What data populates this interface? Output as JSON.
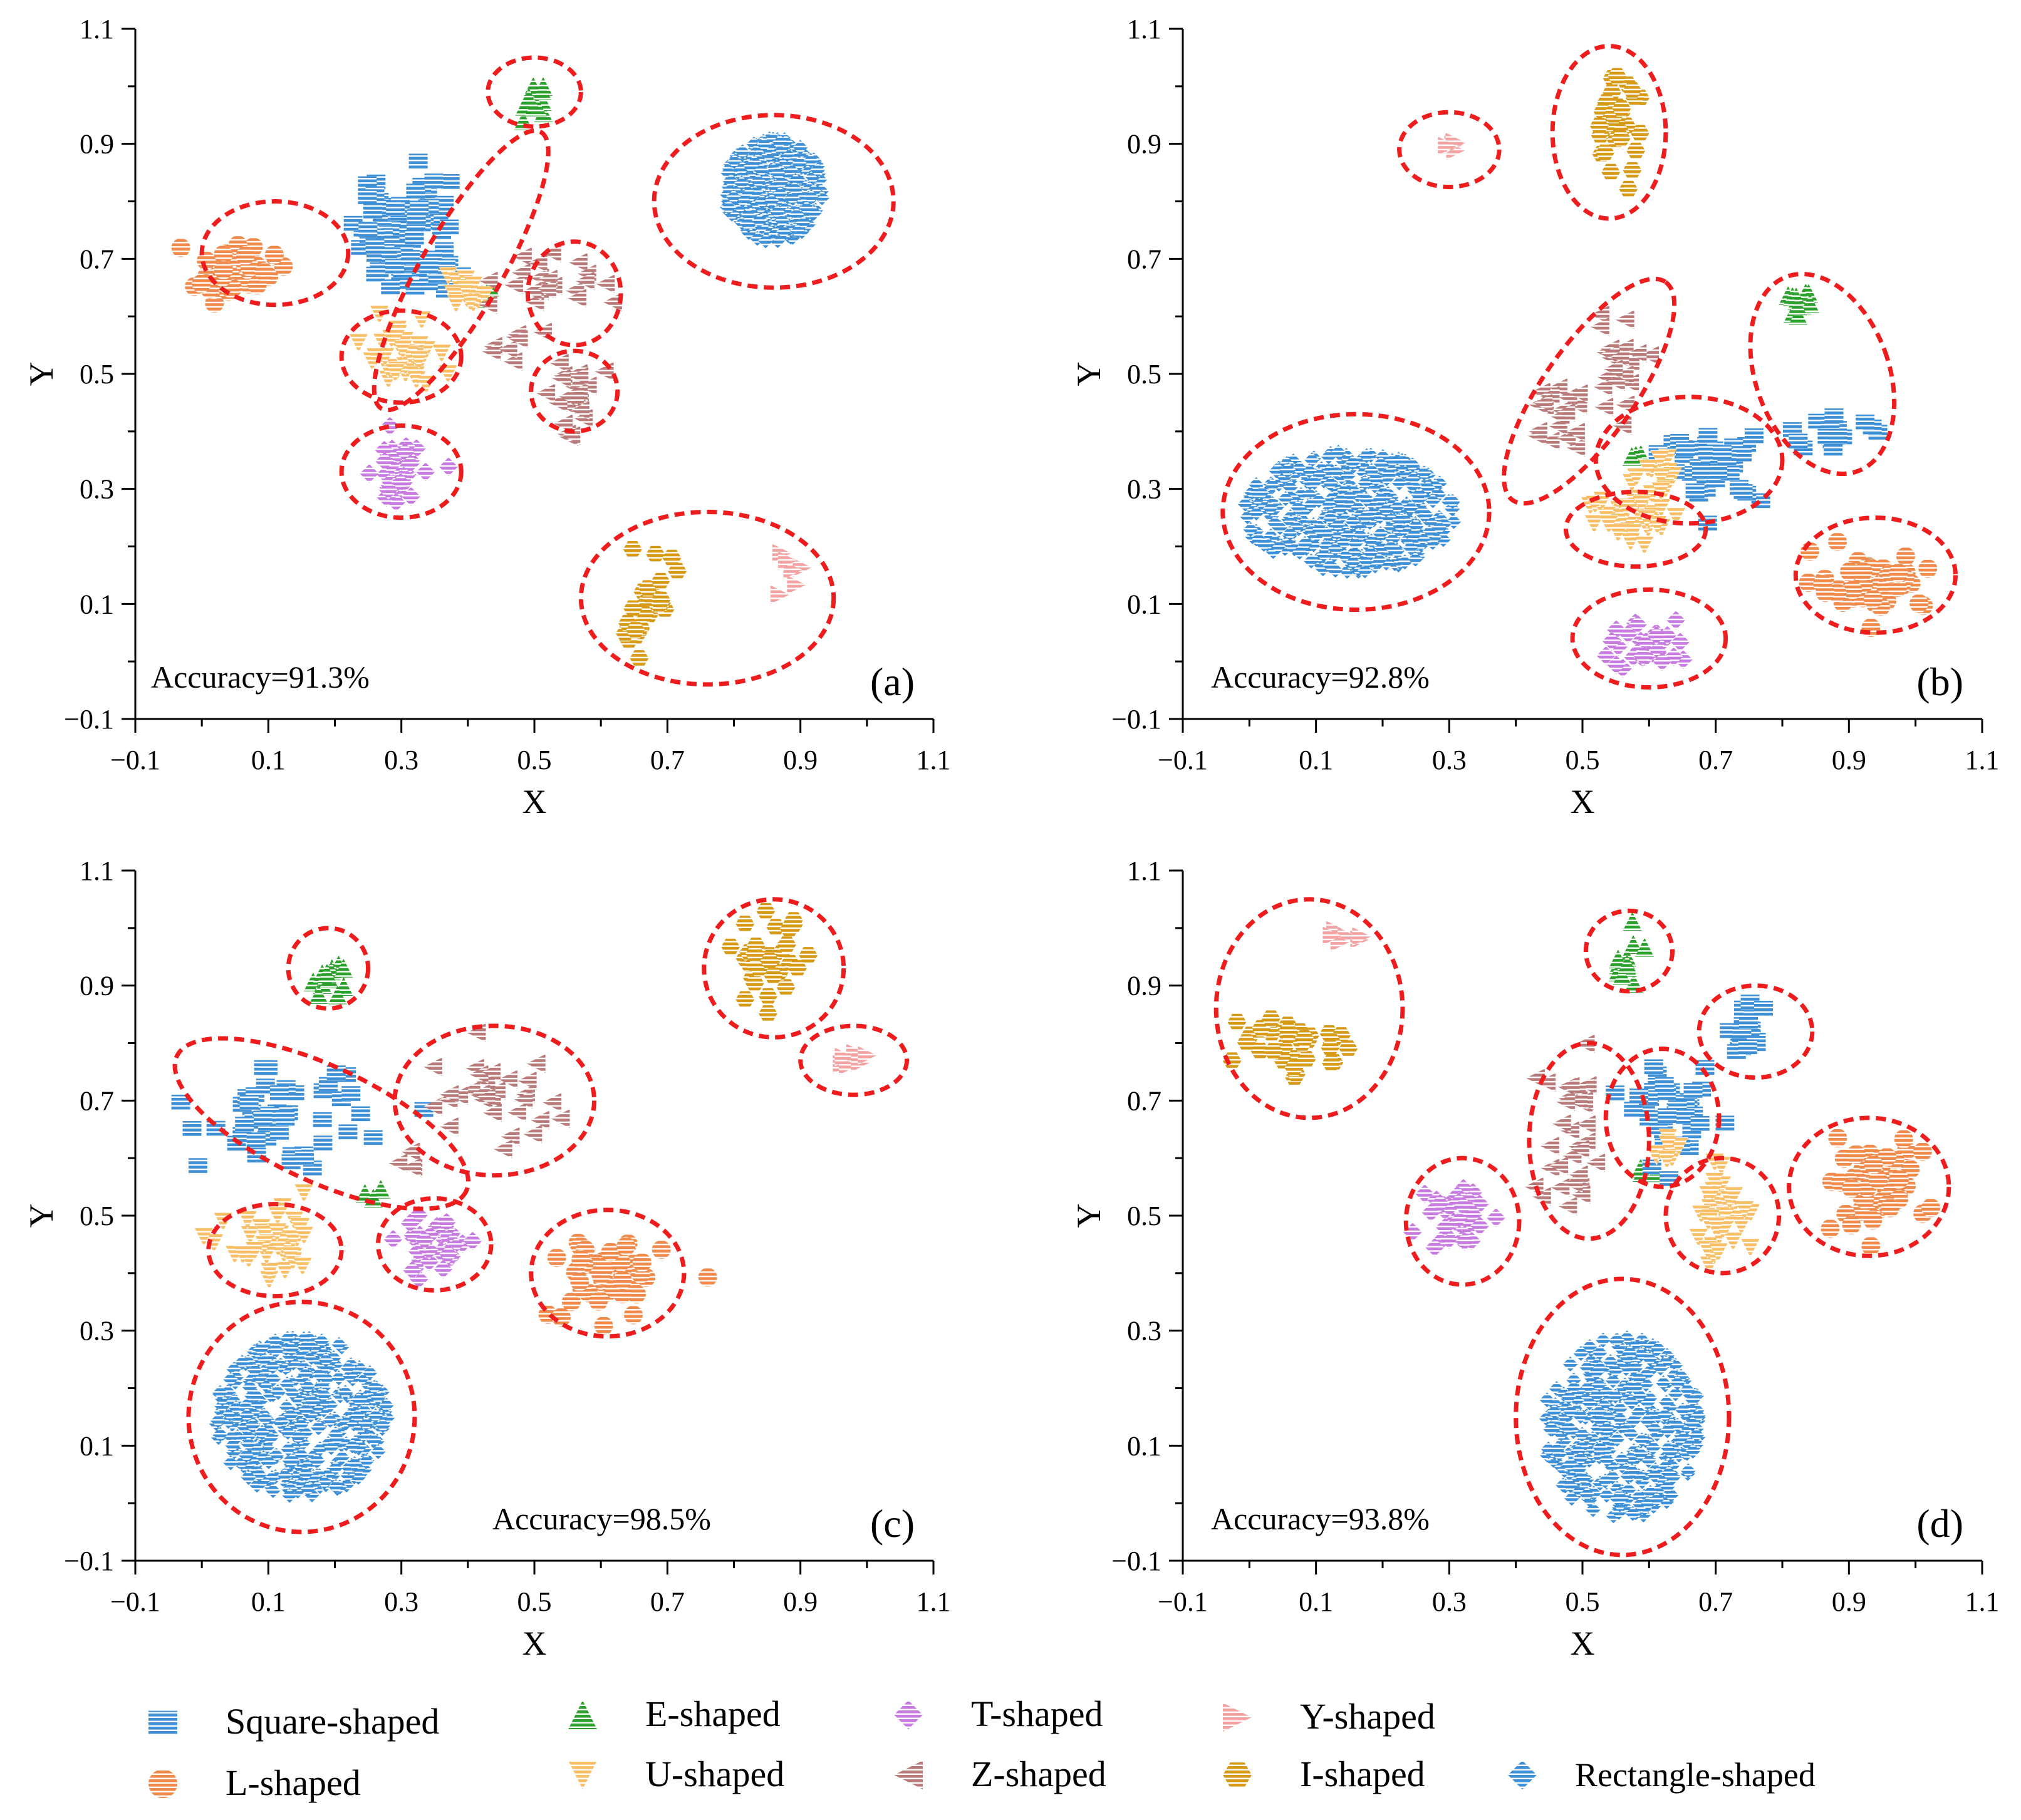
{
  "legend": [
    {
      "key": "square",
      "label": "Square-shaped",
      "color": "#3d8fd6",
      "marker": "square-icon"
    },
    {
      "key": "L",
      "label": "L-shaped",
      "color": "#f08a4b",
      "marker": "circle-icon"
    },
    {
      "key": "E",
      "label": "E-shaped",
      "color": "#2ca02c",
      "marker": "triangle-up-icon"
    },
    {
      "key": "U",
      "label": "U-shaped",
      "color": "#f9bf66",
      "marker": "triangle-down-icon"
    },
    {
      "key": "T",
      "label": "T-shaped",
      "color": "#c77be0",
      "marker": "diamond-icon"
    },
    {
      "key": "Z",
      "label": "Z-shaped",
      "color": "#b97a7a",
      "marker": "triangle-left-icon"
    },
    {
      "key": "Y",
      "label": "Y-shaped",
      "color": "#f4a3a3",
      "marker": "triangle-right-icon"
    },
    {
      "key": "I",
      "label": "I-shaped",
      "color": "#d79a16",
      "marker": "hexagon-icon"
    },
    {
      "key": "rect",
      "label": "Rectangle-shaped",
      "color": "#3d8fd6",
      "marker": "diamond-icon"
    }
  ],
  "chart_data": [
    {
      "type": "scatter",
      "panel": "(a)",
      "accuracy": "Accuracy=91.3%",
      "xlabel": "X",
      "ylabel": "Y",
      "xlim": [
        -0.1,
        1.1
      ],
      "ylim": [
        -0.1,
        1.1
      ],
      "xticks": [
        "−0.1",
        "0.1",
        "0.3",
        "0.5",
        "0.7",
        "0.9",
        "1.1"
      ],
      "yticks": [
        "−0.1",
        "0.1",
        "0.3",
        "0.5",
        "0.7",
        "0.9",
        "1.1"
      ],
      "clusters": [
        {
          "cls": "rect",
          "cx": 0.86,
          "cy": 0.82,
          "rx": 0.075,
          "ry": 0.09,
          "n": 340
        },
        {
          "cls": "square",
          "cx": 0.3,
          "cy": 0.77,
          "rx": 0.06,
          "ry": 0.09,
          "n": 60
        },
        {
          "cls": "square",
          "cx": 0.32,
          "cy": 0.68,
          "rx": 0.05,
          "ry": 0.03,
          "n": 25
        },
        {
          "cls": "L",
          "cx": 0.05,
          "cy": 0.68,
          "rx": 0.05,
          "ry": 0.04,
          "n": 45
        },
        {
          "cls": "E",
          "cx": 0.5,
          "cy": 0.97,
          "rx": 0.02,
          "ry": 0.025,
          "n": 12
        },
        {
          "cls": "E",
          "cx": 0.42,
          "cy": 0.64,
          "rx": 0.02,
          "ry": 0.015,
          "n": 4
        },
        {
          "cls": "U",
          "cx": 0.3,
          "cy": 0.53,
          "rx": 0.045,
          "ry": 0.045,
          "n": 40
        },
        {
          "cls": "U",
          "cx": 0.4,
          "cy": 0.64,
          "rx": 0.04,
          "ry": 0.03,
          "n": 15
        },
        {
          "cls": "Z",
          "cx": 0.52,
          "cy": 0.66,
          "rx": 0.06,
          "ry": 0.05,
          "n": 22
        },
        {
          "cls": "Z",
          "cx": 0.55,
          "cy": 0.47,
          "rx": 0.04,
          "ry": 0.05,
          "n": 22
        },
        {
          "cls": "Z",
          "cx": 0.46,
          "cy": 0.55,
          "rx": 0.03,
          "ry": 0.04,
          "n": 8
        },
        {
          "cls": "T",
          "cx": 0.29,
          "cy": 0.32,
          "rx": 0.03,
          "ry": 0.05,
          "n": 38
        },
        {
          "cls": "T",
          "cx": 0.37,
          "cy": 0.34,
          "rx": 0.005,
          "ry": 0.005,
          "n": 1
        },
        {
          "cls": "I",
          "cx": 0.67,
          "cy": 0.1,
          "rx": 0.04,
          "ry": 0.07,
          "n": 30
        },
        {
          "cls": "Y",
          "cx": 0.88,
          "cy": 0.16,
          "rx": 0.015,
          "ry": 0.03,
          "n": 6
        }
      ],
      "ellipses": [
        {
          "cx": 0.11,
          "cy": 0.71,
          "rx": 0.11,
          "ry": 0.09,
          "rot": 0
        },
        {
          "cx": 0.5,
          "cy": 0.99,
          "rx": 0.07,
          "ry": 0.06,
          "rot": 0
        },
        {
          "cx": 0.86,
          "cy": 0.8,
          "rx": 0.18,
          "ry": 0.15,
          "rot": 0
        },
        {
          "cx": 0.39,
          "cy": 0.68,
          "rx": 0.24,
          "ry": 0.07,
          "rot": -60
        },
        {
          "cx": 0.3,
          "cy": 0.53,
          "rx": 0.09,
          "ry": 0.08,
          "rot": 0
        },
        {
          "cx": 0.56,
          "cy": 0.64,
          "rx": 0.07,
          "ry": 0.09,
          "rot": 0
        },
        {
          "cx": 0.56,
          "cy": 0.47,
          "rx": 0.065,
          "ry": 0.07,
          "rot": 0
        },
        {
          "cx": 0.3,
          "cy": 0.33,
          "rx": 0.09,
          "ry": 0.08,
          "rot": 0
        },
        {
          "cx": 0.76,
          "cy": 0.11,
          "rx": 0.19,
          "ry": 0.15,
          "rot": 0
        }
      ]
    },
    {
      "type": "scatter",
      "panel": "(b)",
      "accuracy": "Accuracy=92.8%",
      "xlabel": "X",
      "ylabel": "Y",
      "xlim": [
        -0.1,
        1.1
      ],
      "ylim": [
        -0.1,
        1.1
      ],
      "xticks": [
        "−0.1",
        "0.1",
        "0.3",
        "0.5",
        "0.7",
        "0.9",
        "1.1"
      ],
      "yticks": [
        "−0.1",
        "0.1",
        "0.3",
        "0.5",
        "0.7",
        "0.9",
        "1.1"
      ],
      "clusters": [
        {
          "cls": "rect",
          "cx": 0.15,
          "cy": 0.26,
          "rx": 0.16,
          "ry": 0.105,
          "n": 360
        },
        {
          "cls": "I",
          "cx": 0.55,
          "cy": 0.93,
          "rx": 0.03,
          "ry": 0.07,
          "n": 35
        },
        {
          "cls": "Y",
          "cx": 0.3,
          "cy": 0.89,
          "rx": 0.01,
          "ry": 0.025,
          "n": 5
        },
        {
          "cls": "E",
          "cx": 0.83,
          "cy": 0.63,
          "rx": 0.025,
          "ry": 0.025,
          "n": 12
        },
        {
          "cls": "E",
          "cx": 0.58,
          "cy": 0.36,
          "rx": 0.015,
          "ry": 0.01,
          "n": 3
        },
        {
          "cls": "square",
          "cx": 0.88,
          "cy": 0.4,
          "rx": 0.05,
          "ry": 0.02,
          "n": 18
        },
        {
          "cls": "square",
          "cx": 0.7,
          "cy": 0.34,
          "rx": 0.06,
          "ry": 0.05,
          "n": 40
        },
        {
          "cls": "Z",
          "cx": 0.55,
          "cy": 0.52,
          "rx": 0.04,
          "ry": 0.07,
          "n": 22
        },
        {
          "cls": "Z",
          "cx": 0.46,
          "cy": 0.43,
          "rx": 0.045,
          "ry": 0.06,
          "n": 18
        },
        {
          "cls": "U",
          "cx": 0.58,
          "cy": 0.25,
          "rx": 0.06,
          "ry": 0.04,
          "n": 40
        },
        {
          "cls": "U",
          "cx": 0.62,
          "cy": 0.33,
          "rx": 0.03,
          "ry": 0.03,
          "n": 12
        },
        {
          "cls": "L",
          "cx": 0.93,
          "cy": 0.14,
          "rx": 0.07,
          "ry": 0.04,
          "n": 50
        },
        {
          "cls": "T",
          "cx": 0.6,
          "cy": 0.03,
          "rx": 0.05,
          "ry": 0.04,
          "n": 40
        }
      ],
      "ellipses": [
        {
          "cx": 0.3,
          "cy": 0.89,
          "rx": 0.075,
          "ry": 0.065,
          "rot": 0
        },
        {
          "cx": 0.54,
          "cy": 0.92,
          "rx": 0.085,
          "ry": 0.15,
          "rot": 0
        },
        {
          "cx": 0.86,
          "cy": 0.5,
          "rx": 0.1,
          "ry": 0.18,
          "rot": -20
        },
        {
          "cx": 0.51,
          "cy": 0.47,
          "rx": 0.2,
          "ry": 0.08,
          "rot": -55
        },
        {
          "cx": 0.66,
          "cy": 0.35,
          "rx": 0.14,
          "ry": 0.11,
          "rot": 0
        },
        {
          "cx": 0.16,
          "cy": 0.26,
          "rx": 0.2,
          "ry": 0.17,
          "rot": 0
        },
        {
          "cx": 0.58,
          "cy": 0.23,
          "rx": 0.105,
          "ry": 0.065,
          "rot": 0
        },
        {
          "cx": 0.94,
          "cy": 0.15,
          "rx": 0.12,
          "ry": 0.1,
          "rot": 0
        },
        {
          "cx": 0.6,
          "cy": 0.04,
          "rx": 0.115,
          "ry": 0.085,
          "rot": 0
        }
      ]
    },
    {
      "type": "scatter",
      "panel": "(c)",
      "accuracy": "Accuracy=98.5%",
      "xlabel": "X",
      "ylabel": "Y",
      "xlim": [
        -0.1,
        1.1
      ],
      "ylim": [
        -0.1,
        1.1
      ],
      "xticks": [
        "−0.1",
        "0.1",
        "0.3",
        "0.5",
        "0.7",
        "0.9",
        "1.1"
      ],
      "yticks": [
        "−0.1",
        "0.1",
        "0.3",
        "0.5",
        "0.7",
        "0.9",
        "1.1"
      ],
      "clusters": [
        {
          "cls": "rect",
          "cx": 0.15,
          "cy": 0.15,
          "rx": 0.13,
          "ry": 0.14,
          "n": 360
        },
        {
          "cls": "E",
          "cx": 0.19,
          "cy": 0.92,
          "rx": 0.025,
          "ry": 0.03,
          "n": 12
        },
        {
          "cls": "E",
          "cx": 0.26,
          "cy": 0.54,
          "rx": 0.015,
          "ry": 0.015,
          "n": 3
        },
        {
          "cls": "I",
          "cx": 0.85,
          "cy": 0.94,
          "rx": 0.05,
          "ry": 0.06,
          "n": 35
        },
        {
          "cls": "Y",
          "cx": 0.98,
          "cy": 0.77,
          "rx": 0.02,
          "ry": 0.015,
          "n": 6
        },
        {
          "cls": "square",
          "cx": 0.12,
          "cy": 0.67,
          "rx": 0.1,
          "ry": 0.07,
          "n": 50
        },
        {
          "cls": "Z",
          "cx": 0.43,
          "cy": 0.7,
          "rx": 0.1,
          "ry": 0.07,
          "n": 30
        },
        {
          "cls": "Z",
          "cx": 0.31,
          "cy": 0.59,
          "rx": 0.02,
          "ry": 0.02,
          "n": 4
        },
        {
          "cls": "U",
          "cx": 0.11,
          "cy": 0.44,
          "rx": 0.06,
          "ry": 0.05,
          "n": 40
        },
        {
          "cls": "T",
          "cx": 0.35,
          "cy": 0.45,
          "rx": 0.045,
          "ry": 0.05,
          "n": 38
        },
        {
          "cls": "L",
          "cx": 0.61,
          "cy": 0.39,
          "rx": 0.07,
          "ry": 0.06,
          "n": 50
        }
      ],
      "ellipses": [
        {
          "cx": 0.19,
          "cy": 0.93,
          "rx": 0.06,
          "ry": 0.07,
          "rot": 0
        },
        {
          "cx": 0.86,
          "cy": 0.93,
          "rx": 0.105,
          "ry": 0.12,
          "rot": 0
        },
        {
          "cx": 0.98,
          "cy": 0.77,
          "rx": 0.08,
          "ry": 0.06,
          "rot": 0
        },
        {
          "cx": 0.18,
          "cy": 0.66,
          "rx": 0.24,
          "ry": 0.1,
          "rot": 25
        },
        {
          "cx": 0.44,
          "cy": 0.7,
          "rx": 0.15,
          "ry": 0.13,
          "rot": 0
        },
        {
          "cx": 0.11,
          "cy": 0.44,
          "rx": 0.1,
          "ry": 0.08,
          "rot": 0
        },
        {
          "cx": 0.35,
          "cy": 0.45,
          "rx": 0.085,
          "ry": 0.08,
          "rot": 0
        },
        {
          "cx": 0.61,
          "cy": 0.4,
          "rx": 0.115,
          "ry": 0.11,
          "rot": 0
        },
        {
          "cx": 0.15,
          "cy": 0.15,
          "rx": 0.17,
          "ry": 0.2,
          "rot": 0
        }
      ]
    },
    {
      "type": "scatter",
      "panel": "(d)",
      "accuracy": "Accuracy=93.8%",
      "xlabel": "X",
      "ylabel": "Y",
      "xlim": [
        -0.1,
        1.1
      ],
      "ylim": [
        -0.1,
        1.1
      ],
      "xticks": [
        "−0.1",
        "0.1",
        "0.3",
        "0.5",
        "0.7",
        "0.9",
        "1.1"
      ],
      "yticks": [
        "−0.1",
        "0.1",
        "0.3",
        "0.5",
        "0.7",
        "0.9",
        "1.1"
      ],
      "clusters": [
        {
          "cls": "rect",
          "cx": 0.56,
          "cy": 0.13,
          "rx": 0.12,
          "ry": 0.16,
          "n": 340
        },
        {
          "cls": "E",
          "cx": 0.57,
          "cy": 0.95,
          "rx": 0.02,
          "ry": 0.04,
          "n": 12
        },
        {
          "cls": "E",
          "cx": 0.59,
          "cy": 0.58,
          "rx": 0.015,
          "ry": 0.015,
          "n": 3
        },
        {
          "cls": "Y",
          "cx": 0.15,
          "cy": 0.99,
          "rx": 0.025,
          "ry": 0.015,
          "n": 6
        },
        {
          "cls": "I",
          "cx": 0.06,
          "cy": 0.8,
          "rx": 0.08,
          "ry": 0.05,
          "n": 35
        },
        {
          "cls": "square",
          "cx": 0.75,
          "cy": 0.82,
          "rx": 0.025,
          "ry": 0.04,
          "n": 18
        },
        {
          "cls": "square",
          "cx": 0.64,
          "cy": 0.67,
          "rx": 0.05,
          "ry": 0.06,
          "n": 40
        },
        {
          "cls": "Z",
          "cx": 0.48,
          "cy": 0.62,
          "rx": 0.045,
          "ry": 0.12,
          "n": 32
        },
        {
          "cls": "U",
          "cx": 0.71,
          "cy": 0.5,
          "rx": 0.04,
          "ry": 0.06,
          "n": 38
        },
        {
          "cls": "U",
          "cx": 0.62,
          "cy": 0.62,
          "rx": 0.02,
          "ry": 0.03,
          "n": 8
        },
        {
          "cls": "T",
          "cx": 0.32,
          "cy": 0.5,
          "rx": 0.04,
          "ry": 0.05,
          "n": 38
        },
        {
          "cls": "L",
          "cx": 0.93,
          "cy": 0.55,
          "rx": 0.07,
          "ry": 0.06,
          "n": 50
        }
      ],
      "ellipses": [
        {
          "cx": 0.57,
          "cy": 0.96,
          "rx": 0.065,
          "ry": 0.07,
          "rot": 0
        },
        {
          "cx": 0.09,
          "cy": 0.86,
          "rx": 0.14,
          "ry": 0.19,
          "rot": 0
        },
        {
          "cx": 0.76,
          "cy": 0.82,
          "rx": 0.085,
          "ry": 0.08,
          "rot": 0
        },
        {
          "cx": 0.51,
          "cy": 0.63,
          "rx": 0.09,
          "ry": 0.17,
          "rot": 0
        },
        {
          "cx": 0.62,
          "cy": 0.67,
          "rx": 0.085,
          "ry": 0.12,
          "rot": 0
        },
        {
          "cx": 0.32,
          "cy": 0.49,
          "rx": 0.085,
          "ry": 0.11,
          "rot": 0
        },
        {
          "cx": 0.71,
          "cy": 0.5,
          "rx": 0.085,
          "ry": 0.1,
          "rot": 0
        },
        {
          "cx": 0.93,
          "cy": 0.55,
          "rx": 0.12,
          "ry": 0.12,
          "rot": 0
        },
        {
          "cx": 0.56,
          "cy": 0.15,
          "rx": 0.16,
          "ry": 0.24,
          "rot": 0
        }
      ]
    }
  ]
}
